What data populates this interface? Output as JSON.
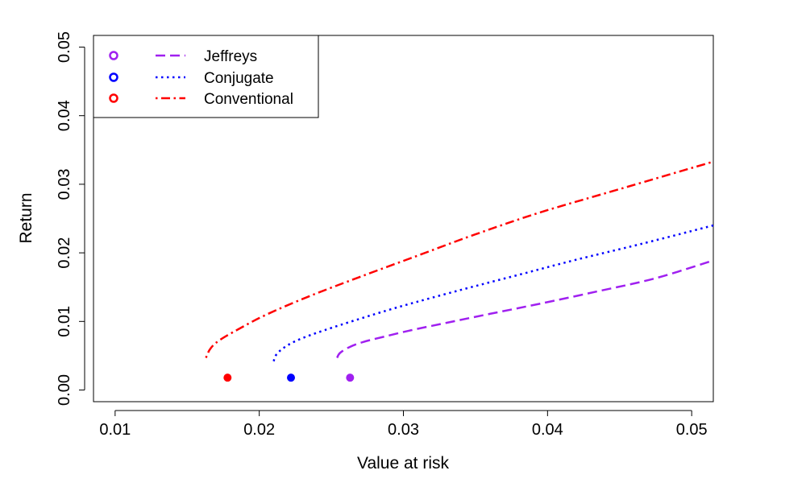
{
  "chart_data": {
    "type": "line",
    "title": "",
    "xlabel": "Value at risk",
    "ylabel": "Return",
    "xlim": [
      0.0085,
      0.0515
    ],
    "ylim": [
      -0.0017,
      0.0517
    ],
    "xticks": [
      0.01,
      0.02,
      0.03,
      0.04,
      0.05
    ],
    "xtick_labels": [
      "0.01",
      "0.02",
      "0.03",
      "0.04",
      "0.05"
    ],
    "yticks": [
      0.0,
      0.01,
      0.02,
      0.03,
      0.04,
      0.05
    ],
    "ytick_labels": [
      "0.00",
      "0.01",
      "0.02",
      "0.03",
      "0.04",
      "0.05"
    ],
    "grid": false,
    "legend_position": "top-left",
    "series": [
      {
        "name": "Jeffreys",
        "color": "#A020F0",
        "line_style": "dashed",
        "frontier_min_variance": [
          0.0254,
          0.0047
        ],
        "frontier_points": [
          [
            0.0254,
            0.0047
          ],
          [
            0.0256,
            0.0054
          ],
          [
            0.0262,
            0.0062
          ],
          [
            0.0272,
            0.007
          ],
          [
            0.0287,
            0.0078
          ],
          [
            0.0305,
            0.0087
          ],
          [
            0.033,
            0.0098
          ],
          [
            0.036,
            0.0111
          ],
          [
            0.0395,
            0.0126
          ],
          [
            0.0435,
            0.0144
          ],
          [
            0.0475,
            0.0163
          ],
          [
            0.0515,
            0.0189
          ]
        ],
        "marker": [
          0.0263,
          0.0018
        ]
      },
      {
        "name": "Conjugate",
        "color": "#0000FF",
        "line_style": "dotted",
        "frontier_min_variance": [
          0.021,
          0.0042
        ],
        "frontier_points": [
          [
            0.021,
            0.0042
          ],
          [
            0.0212,
            0.0052
          ],
          [
            0.0218,
            0.0063
          ],
          [
            0.0228,
            0.0074
          ],
          [
            0.0245,
            0.0087
          ],
          [
            0.027,
            0.0104
          ],
          [
            0.03,
            0.0123
          ],
          [
            0.034,
            0.0146
          ],
          [
            0.038,
            0.0168
          ],
          [
            0.042,
            0.019
          ],
          [
            0.0465,
            0.0213
          ],
          [
            0.0515,
            0.024
          ]
        ],
        "marker": [
          0.0222,
          0.0018
        ]
      },
      {
        "name": "Conventional",
        "color": "#FF0000",
        "line_style": "dotdash",
        "frontier_min_variance": [
          0.0163,
          0.0047
        ],
        "frontier_points": [
          [
            0.0163,
            0.0047
          ],
          [
            0.0166,
            0.006
          ],
          [
            0.0172,
            0.0072
          ],
          [
            0.0185,
            0.0088
          ],
          [
            0.0205,
            0.011
          ],
          [
            0.0235,
            0.0137
          ],
          [
            0.027,
            0.0165
          ],
          [
            0.031,
            0.0196
          ],
          [
            0.035,
            0.0227
          ],
          [
            0.0395,
            0.0259
          ],
          [
            0.045,
            0.0293
          ],
          [
            0.0515,
            0.0333
          ]
        ],
        "marker": [
          0.0178,
          0.0018
        ]
      }
    ]
  }
}
